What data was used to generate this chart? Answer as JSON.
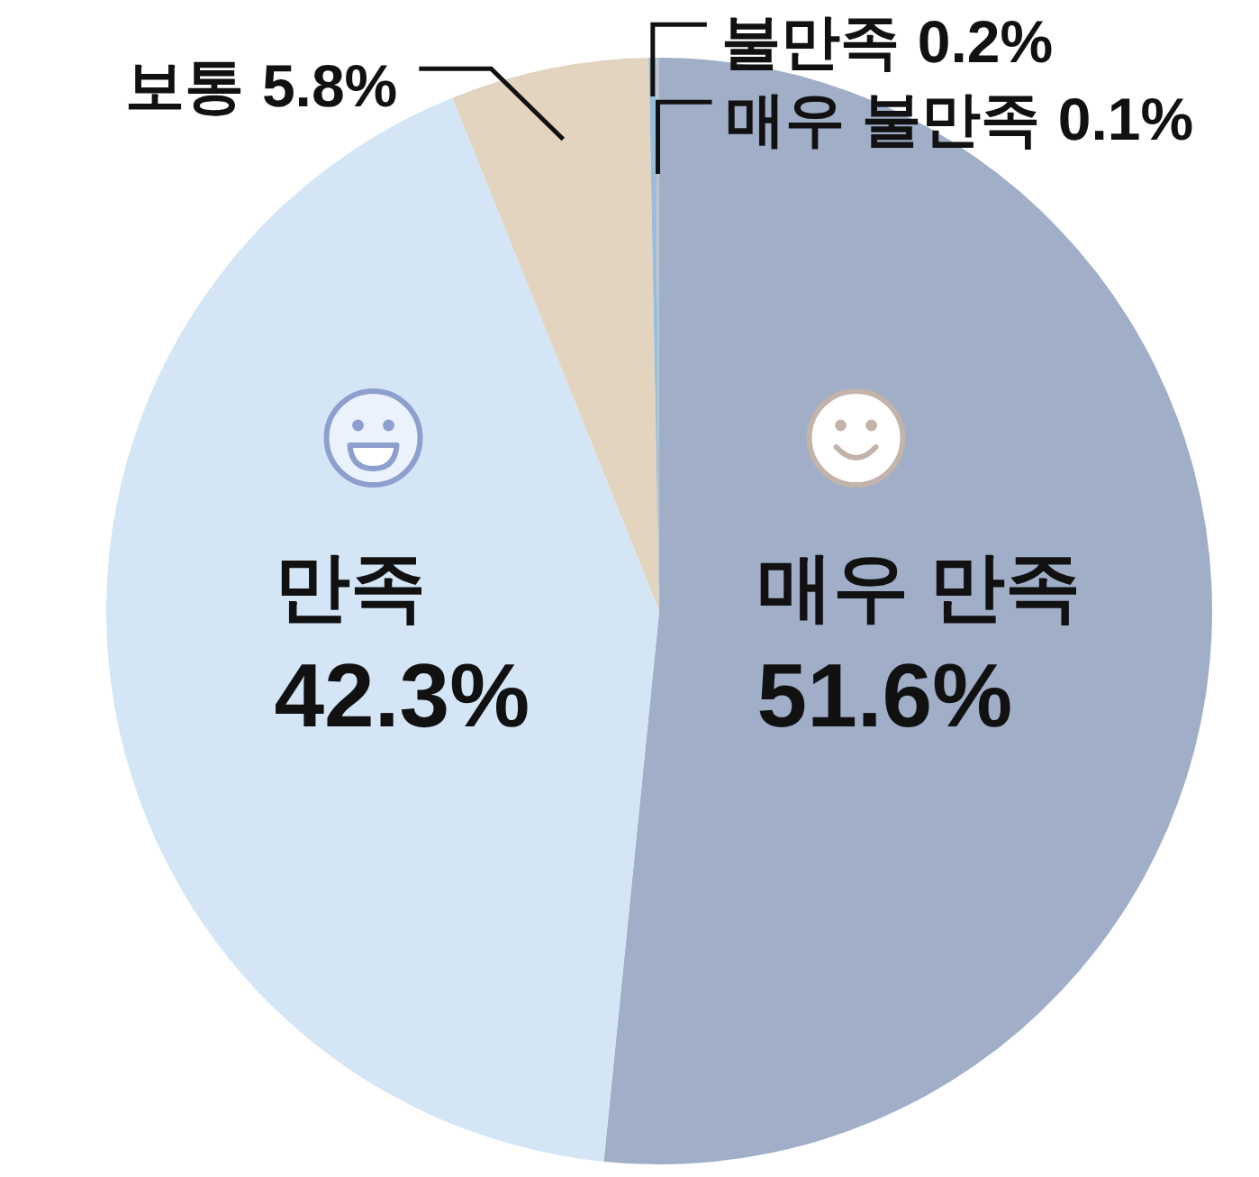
{
  "chart_data": {
    "type": "pie",
    "categories": [
      "매우 만족",
      "만족",
      "보통",
      "불만족",
      "매우 불만족"
    ],
    "values": [
      51.6,
      42.3,
      5.8,
      0.2,
      0.1
    ],
    "colors": [
      "#a0aec7",
      "#d4e6f6",
      "#e3d4c0",
      "#97bedb",
      "#bcc4cc"
    ],
    "value_labels": [
      "51.6%",
      "42.3%",
      "5.8%",
      "0.2%",
      "0.1%"
    ]
  }
}
